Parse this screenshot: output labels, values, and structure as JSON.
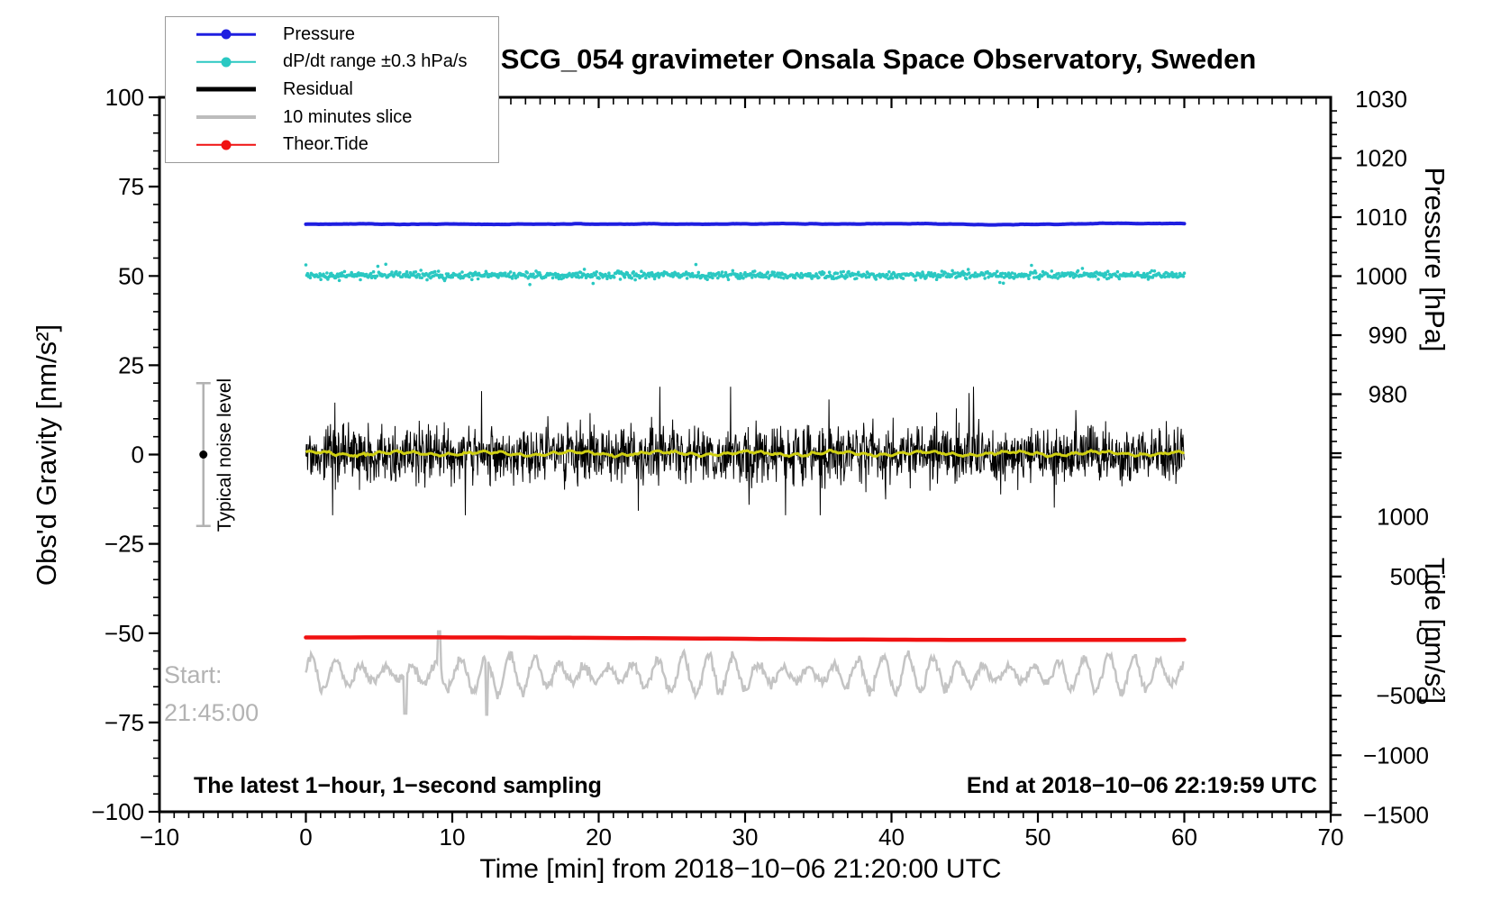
{
  "title": "SCG_054 gravimeter Onsala Space Observatory, Sweden",
  "legend": {
    "items": [
      {
        "label": "Pressure",
        "color": "#1f1fe0",
        "marker": "line-dot"
      },
      {
        "label": "dP/dt range ±0.3 hPa/s",
        "color": "#2ac8c2",
        "marker": "line-dot"
      },
      {
        "label": "Residual",
        "color": "#000000",
        "marker": "thick-line"
      },
      {
        "label": "10 minutes slice",
        "color": "#bcbcbc",
        "marker": "thick-line"
      },
      {
        "label": "Theor.Tide",
        "color": "#f01111",
        "marker": "line-dot"
      }
    ]
  },
  "annotations": {
    "noise_label": "Typical noise level",
    "start_label_line1": "Start:",
    "start_label_line2": "21:45:00",
    "bottom_left": "The latest 1−hour, 1−second sampling",
    "bottom_right": "End at 2018−10−06 22:19:59 UTC"
  },
  "chart_data": {
    "type": "line",
    "title": "SCG_054 gravimeter Onsala Space Observatory, Sweden",
    "xlabel": "Time [min] from 2018−10−06 21:20:00 UTC",
    "ylabel_left": "Obs'd Gravity [nm/s²]",
    "ylabel_right_top": "Pressure [hPa]",
    "ylabel_right_bottom": "Tide [nm/s²]",
    "xlim": [
      -10,
      70
    ],
    "ylim_left": [
      -100,
      100
    ],
    "pressure_axis_range_shown": [
      980,
      1030
    ],
    "tide_axis_range_shown": [
      -1500,
      1000
    ],
    "grid": false,
    "legend_position": "top-left",
    "x_ticks": [
      {
        "v": -10,
        "label": "−10"
      },
      {
        "v": 0,
        "label": "0"
      },
      {
        "v": 10,
        "label": "10"
      },
      {
        "v": 20,
        "label": "20"
      },
      {
        "v": 30,
        "label": "30"
      },
      {
        "v": 40,
        "label": "40"
      },
      {
        "v": 50,
        "label": "50"
      },
      {
        "v": 60,
        "label": "60"
      },
      {
        "v": 70,
        "label": "70"
      }
    ],
    "gravity_ticks": [
      {
        "v": 100,
        "label": "100"
      },
      {
        "v": 75,
        "label": "75"
      },
      {
        "v": 50,
        "label": "50"
      },
      {
        "v": 25,
        "label": "25"
      },
      {
        "v": 0,
        "label": "0"
      },
      {
        "v": -25,
        "label": "−25"
      },
      {
        "v": -50,
        "label": "−50"
      },
      {
        "v": -75,
        "label": "−75"
      },
      {
        "v": -100,
        "label": "−100"
      }
    ],
    "pressure_ticks": [
      {
        "v": 1030,
        "label": "1030"
      },
      {
        "v": 1020,
        "label": "1020"
      },
      {
        "v": 1010,
        "label": "1010"
      },
      {
        "v": 1000,
        "label": "1000"
      },
      {
        "v": 990,
        "label": "990"
      },
      {
        "v": 980,
        "label": "980"
      }
    ],
    "tide_ticks": [
      {
        "v": 1000,
        "label": "1000"
      },
      {
        "v": 500,
        "label": "500"
      },
      {
        "v": 0,
        "label": "0"
      },
      {
        "v": -500,
        "label": "−500"
      },
      {
        "v": -1000,
        "label": "−1000"
      },
      {
        "v": -1500,
        "label": "−1500"
      }
    ],
    "series": [
      {
        "name": "Pressure",
        "style": "line",
        "color": "#1f1fe0",
        "axis": "pressure-right",
        "x_range_min": [
          0,
          60
        ],
        "level_hPa": 1009,
        "gravity_scale_level": 64.6,
        "description": "near-constant barometric pressure trace"
      },
      {
        "name": "dP/dt range ±0.3 hPa/s",
        "style": "scatter",
        "color": "#2ac8c2",
        "x_range_min": [
          0,
          60
        ],
        "center_gravity_scale": 50.2,
        "scatter_sigma": 0.6,
        "outlier_extent": 3.5,
        "burst_regions_min": [
          [
            4.5,
            9.6
          ],
          [
            46,
            53.5
          ]
        ]
      },
      {
        "name": "Residual",
        "style": "noisy-line",
        "color": "#000000",
        "x_range_min": [
          0,
          60
        ],
        "center_gravity": 0,
        "sigma": 4,
        "peak_excursion": 18
      },
      {
        "name": "Residual smoothed",
        "style": "line",
        "color": "#cfcf12",
        "x_range_min": [
          0,
          60
        ],
        "center_gravity": 0.3,
        "ripple_amplitude": 0.8,
        "description": "yellow smoothed curve over residual (not in legend)"
      },
      {
        "name": "Theor.Tide",
        "style": "line",
        "color": "#f01111",
        "axis": "tide-right",
        "x_range_min": [
          0,
          60
        ],
        "start_gravity_scale": -51.2,
        "end_gravity_scale": -52.0,
        "tide_value_approx": -30
      },
      {
        "name": "10 minutes slice",
        "style": "line",
        "color": "#c4c4c4",
        "x_range_min": [
          0,
          60
        ],
        "center_gravity_scale": -61.5,
        "amplitude": 6,
        "min_gravity_scale": -73,
        "max_gravity_scale": -49
      }
    ],
    "noise_bar": {
      "x_min": -7,
      "center_gravity": 0,
      "half_range_gravity": 20,
      "bar_color": "#b2b2b2",
      "dot_color": "#000000"
    }
  }
}
